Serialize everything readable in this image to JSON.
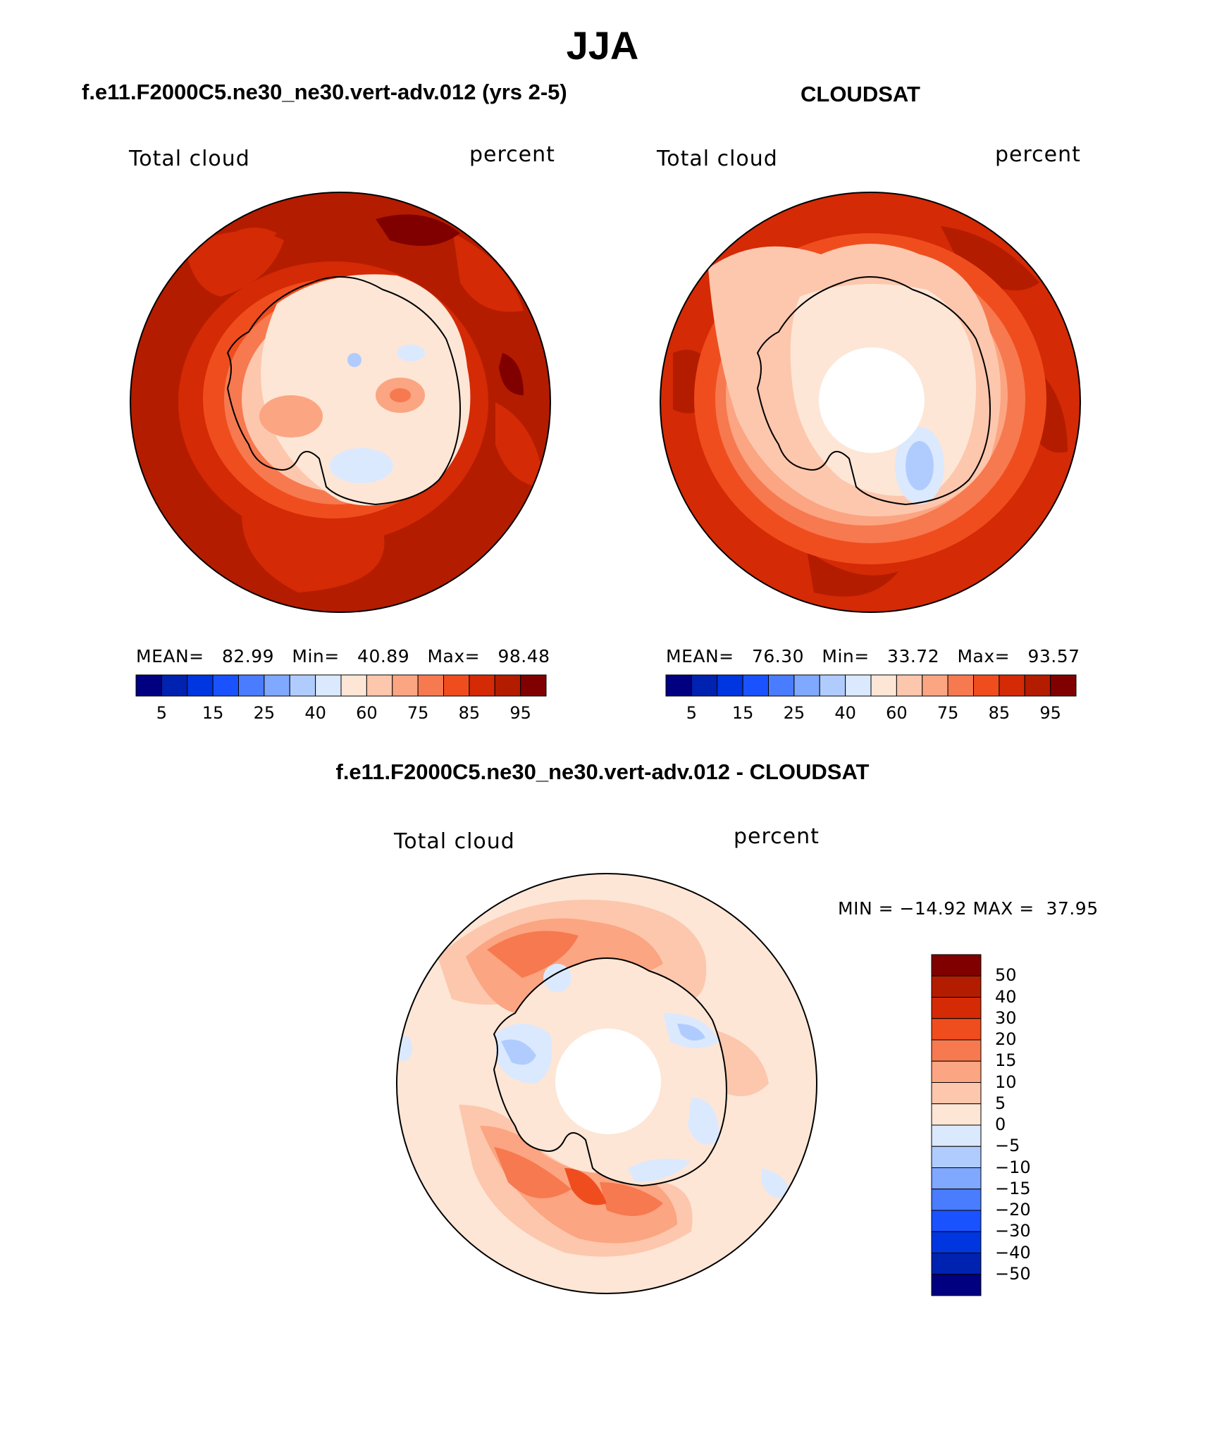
{
  "title": "JJA",
  "panels": [
    {
      "subtitle": "f.e11.F2000C5.ne30_ne30.vert-adv.012 (yrs 2-5)",
      "left_label": "Total cloud",
      "right_label": "percent",
      "stats": {
        "mean_label": "MEAN=",
        "mean": "82.99",
        "min_label": "Min=",
        "min": "40.89",
        "max_label": "Max=",
        "max": "98.48"
      },
      "polar_hole": false
    },
    {
      "subtitle": "CLOUDSAT",
      "left_label": "Total cloud",
      "right_label": "percent",
      "stats": {
        "mean_label": "MEAN=",
        "mean": "76.30",
        "min_label": "Min=",
        "min": "33.72",
        "max_label": "Max=",
        "max": "93.57"
      },
      "polar_hole": true
    }
  ],
  "colorbar": {
    "colors": [
      "#000080",
      "#0022b0",
      "#0036e0",
      "#1a52ff",
      "#4a7cff",
      "#80a8ff",
      "#b0ccff",
      "#dbe9ff",
      "#fde6d6",
      "#fcc7ad",
      "#fba582",
      "#f7794f",
      "#f04d1e",
      "#d42a05",
      "#b41c00",
      "#800000"
    ],
    "tick_labels": [
      "5",
      "15",
      "25",
      "40",
      "60",
      "75",
      "85",
      "95"
    ]
  },
  "diff": {
    "subtitle": "f.e11.F2000C5.ne30_ne30.vert-adv.012 - CLOUDSAT",
    "left_label": "Total cloud",
    "right_label": "percent",
    "minmax": "MIN = −14.92 MAX =  37.95",
    "colorbar_colors": [
      "#800000",
      "#b41c00",
      "#d42a05",
      "#f04d1e",
      "#f7794f",
      "#fba582",
      "#fcc7ad",
      "#fde6d6",
      "#dbe9ff",
      "#b0ccff",
      "#80a8ff",
      "#4a7cff",
      "#1a52ff",
      "#0036e0",
      "#0022b0",
      "#000080"
    ],
    "colorbar_labels": [
      "50",
      "40",
      "30",
      "20",
      "15",
      "10",
      "5",
      "0",
      "−5",
      "−10",
      "−15",
      "−20",
      "−30",
      "−40",
      "−50"
    ]
  }
}
